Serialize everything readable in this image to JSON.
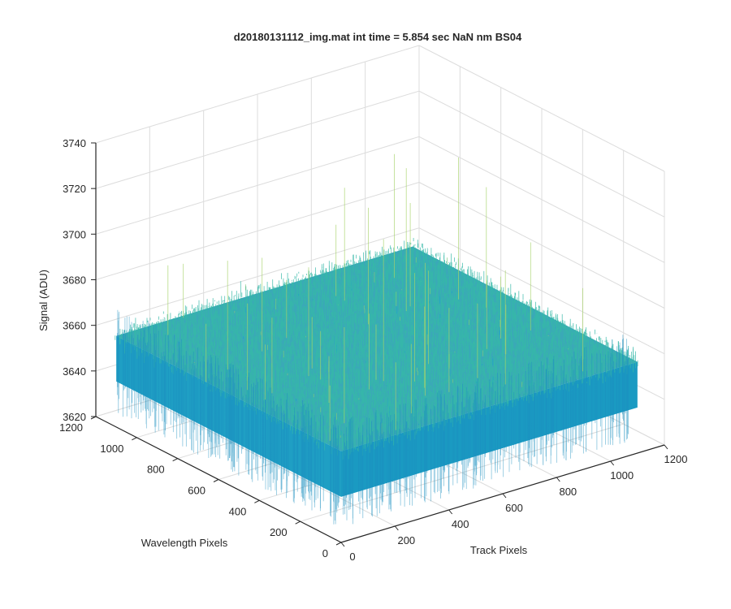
{
  "chart_data": {
    "type": "surface",
    "title": "d20180131112_img.mat int time = 5.854 sec  NaN nm BS04",
    "xlabel": "Track Pixels",
    "ylabel": "Wavelength Pixels",
    "zlabel": "Signal (ADU)",
    "xlim": [
      0,
      1200
    ],
    "ylim": [
      0,
      1200
    ],
    "zlim": [
      3620,
      3740
    ],
    "xticks": [
      "0",
      "200",
      "400",
      "600",
      "800",
      "1000",
      "1200"
    ],
    "yticks": [
      "0",
      "200",
      "400",
      "600",
      "800",
      "1000",
      "1200"
    ],
    "zticks": [
      "3620",
      "3640",
      "3660",
      "3680",
      "3700",
      "3720",
      "3740"
    ],
    "grid": true,
    "data_extent": {
      "x": [
        0,
        1100
      ],
      "y": [
        0,
        1100
      ]
    },
    "signal_mean": 3660,
    "signal_typical_range": [
      3640,
      3680
    ],
    "signal_peak": 3725,
    "colormap": [
      "#0072bd",
      "#1aa6c8",
      "#36b8a8",
      "#7fc97f",
      "#c8d84a"
    ]
  }
}
